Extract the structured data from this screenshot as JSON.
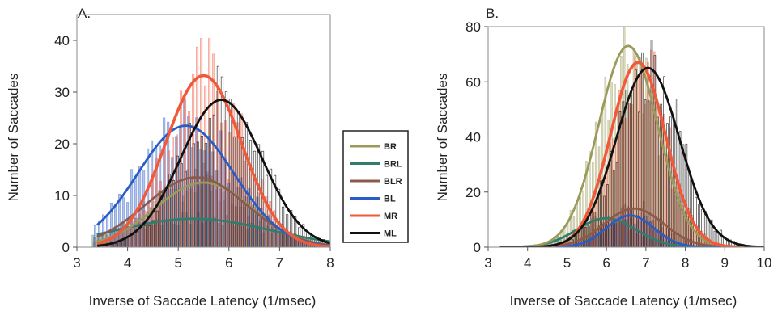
{
  "chart_data": [
    {
      "panel_label": "A.",
      "type": "bar",
      "xlabel": "Inverse of Saccade Latency (1/msec)",
      "ylabel": "Number of Saccades",
      "xlim": [
        3,
        8
      ],
      "ylim": [
        0,
        45
      ],
      "xticks": [
        3,
        4,
        5,
        6,
        7,
        8
      ],
      "yticks": [
        0,
        10,
        20,
        30,
        40
      ],
      "grid": false,
      "series": [
        {
          "name": "BR",
          "color": "#9a9a5a",
          "fit": {
            "peak": 12.5,
            "mean": 5.5,
            "sd": 0.95
          }
        },
        {
          "name": "BRL",
          "color": "#2e7d6e",
          "fit": {
            "peak": 5.5,
            "mean": 5.3,
            "sd": 1.5
          }
        },
        {
          "name": "BLR",
          "color": "#8b5a4a",
          "fit": {
            "peak": 13.5,
            "mean": 5.35,
            "sd": 1.0
          }
        },
        {
          "name": "BL",
          "color": "#2a5cc6",
          "fit": {
            "peak": 23.5,
            "mean": 5.15,
            "sd": 0.95
          }
        },
        {
          "name": "MR",
          "color": "#f05a3a",
          "fit": {
            "peak": 33.2,
            "mean": 5.5,
            "sd": 0.75
          }
        },
        {
          "name": "ML",
          "color": "#111111",
          "fit": {
            "peak": 28.5,
            "mean": 5.85,
            "sd": 0.8
          }
        }
      ]
    },
    {
      "panel_label": "B.",
      "type": "bar",
      "xlabel": "Inverse of Saccade Latency (1/msec)",
      "ylabel": "Number of Saccades",
      "xlim": [
        3,
        10
      ],
      "ylim": [
        0,
        80
      ],
      "xticks": [
        3,
        4,
        5,
        6,
        7,
        8,
        9,
        10
      ],
      "yticks": [
        0,
        20,
        40,
        60,
        80
      ],
      "grid": false,
      "series": [
        {
          "name": "BR",
          "color": "#9a9a5a",
          "fit": {
            "peak": 73,
            "mean": 6.55,
            "sd": 0.75
          }
        },
        {
          "name": "BRL",
          "color": "#2e7d6e",
          "fit": {
            "peak": 10.5,
            "mean": 6.0,
            "sd": 0.75
          }
        },
        {
          "name": "BLR",
          "color": "#8b5a4a",
          "fit": {
            "peak": 14,
            "mean": 6.7,
            "sd": 0.75
          }
        },
        {
          "name": "BL",
          "color": "#2a5cc6",
          "fit": {
            "peak": 11.5,
            "mean": 6.6,
            "sd": 0.6
          }
        },
        {
          "name": "MR",
          "color": "#f05a3a",
          "fit": {
            "peak": 67,
            "mean": 6.8,
            "sd": 0.7
          }
        },
        {
          "name": "ML",
          "color": "#111111",
          "fit": {
            "peak": 65,
            "mean": 7.05,
            "sd": 0.8
          }
        }
      ]
    }
  ],
  "legend": {
    "placement": "between panels",
    "entries": [
      "BR",
      "BRL",
      "BLR",
      "BL",
      "MR",
      "ML"
    ]
  }
}
